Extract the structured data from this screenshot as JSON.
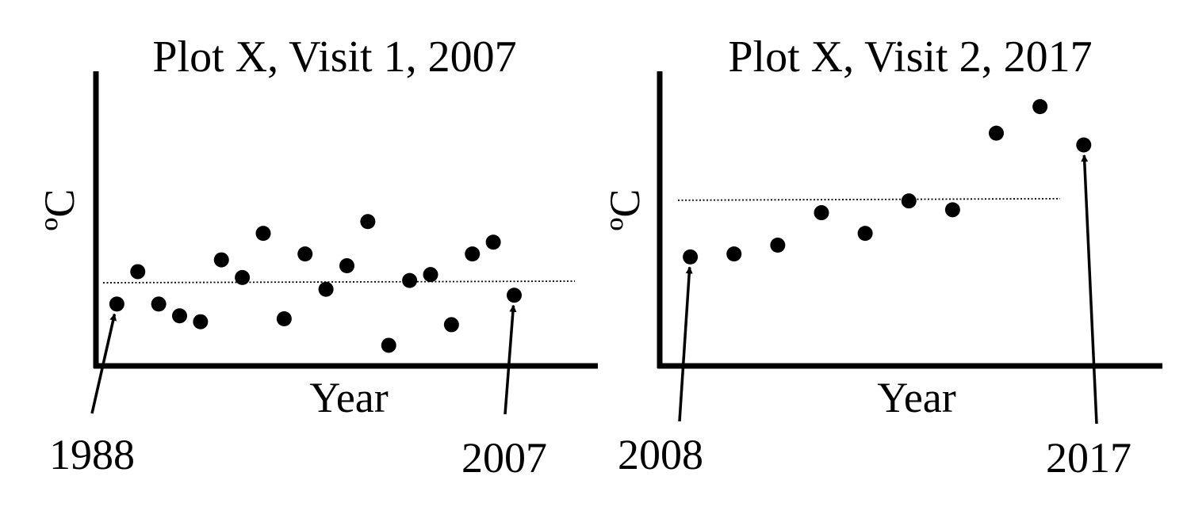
{
  "chart_data": [
    {
      "type": "scatter",
      "title": "Plot X, Visit 1, 2007",
      "xlabel": "Year",
      "ylabel": "ºC",
      "x": [
        1988,
        1989,
        1990,
        1991,
        1992,
        1993,
        1994,
        1995,
        1996,
        1997,
        1998,
        1999,
        2000,
        2001,
        2002,
        2003,
        2004,
        2005,
        2006,
        2007
      ],
      "y": [
        2.1,
        3.2,
        2.1,
        1.7,
        1.5,
        3.6,
        3.0,
        4.5,
        1.6,
        3.8,
        2.6,
        3.4,
        4.9,
        0.7,
        2.9,
        3.1,
        1.4,
        3.8,
        4.2,
        2.4
      ],
      "mean_line": 2.85,
      "xlim": [
        1987,
        2011
      ],
      "ylim": [
        0,
        10
      ],
      "annotations": [
        {
          "label": "1988",
          "x": 1988,
          "y": 2.1
        },
        {
          "label": "2007",
          "x": 2007,
          "y": 2.4
        }
      ]
    },
    {
      "type": "scatter",
      "title": "Plot X, Visit 2, 2017",
      "xlabel": "Year",
      "ylabel": "ºC",
      "x": [
        2008,
        2009,
        2010,
        2011,
        2012,
        2013,
        2014,
        2015,
        2016,
        2017
      ],
      "y": [
        3.7,
        3.8,
        4.1,
        5.2,
        4.5,
        5.6,
        5.3,
        7.9,
        8.8,
        7.5
      ],
      "mean_line": 5.65,
      "xlim": [
        2007.3,
        2018.8
      ],
      "ylim": [
        0,
        10
      ],
      "annotations": [
        {
          "label": "2008",
          "x": 2008,
          "y": 3.7
        },
        {
          "label": "2017",
          "x": 2017,
          "y": 7.5
        }
      ]
    }
  ]
}
